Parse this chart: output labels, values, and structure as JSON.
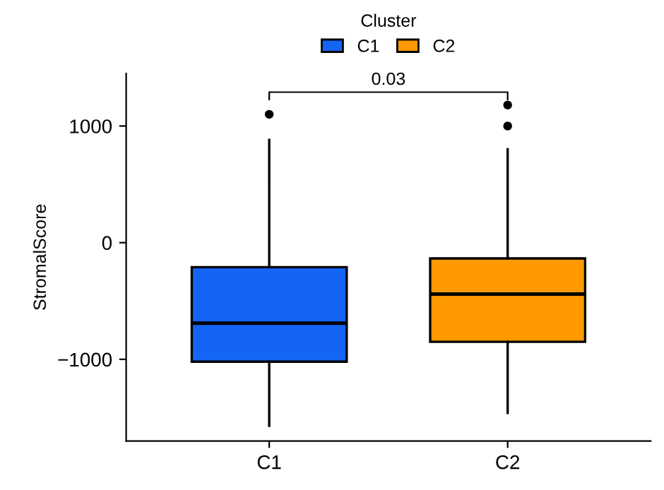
{
  "chart_data": {
    "type": "box",
    "ylabel": "StromalScore",
    "legend_title": "Cluster",
    "categories": [
      "C1",
      "C2"
    ],
    "series": [
      {
        "name": "C1",
        "color": "#1565f5",
        "boxes": [
          {
            "low": -1570,
            "q1": -1020,
            "median": -690,
            "q3": -210,
            "high": 880,
            "outliers": [
              1100
            ]
          },
          null
        ]
      },
      {
        "name": "C2",
        "color": "#ff9900",
        "boxes": [
          null,
          {
            "low": -1460,
            "q1": -850,
            "median": -440,
            "q3": -135,
            "high": 800,
            "outliers": [
              1000,
              1180
            ]
          }
        ]
      }
    ],
    "ylim": [
      -1700,
      1450
    ],
    "yticks": [
      {
        "value": -1000,
        "label": "−1000"
      },
      0,
      1000
    ],
    "annotations": [
      "0.03"
    ],
    "legend": "top",
    "grid": false
  }
}
